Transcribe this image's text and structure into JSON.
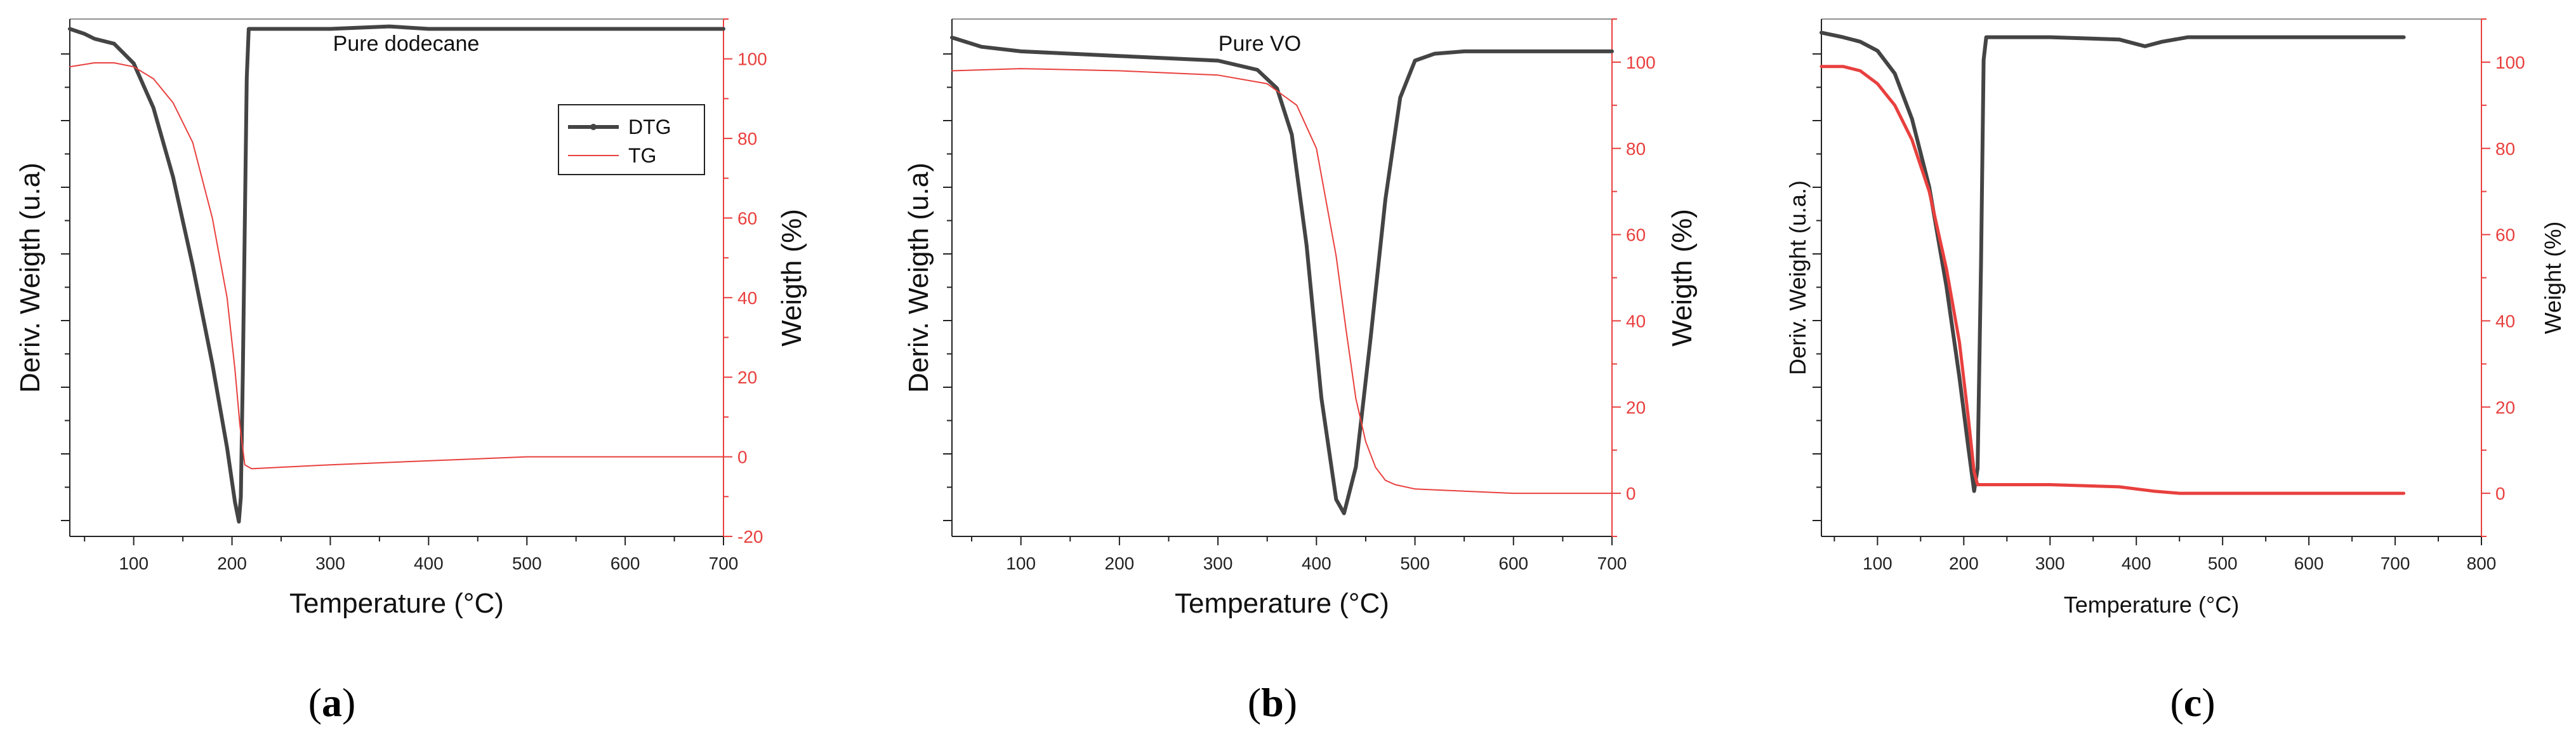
{
  "colors": {
    "dtg": "#444444",
    "tg": "#e8403e",
    "axis_left": "#222222",
    "axis_right": "#e8403e"
  },
  "chart_data": [
    {
      "id": "a",
      "type": "line",
      "title": "Pure dodecane",
      "caption_letter": "a",
      "xlabel": "Temperature (°C)",
      "ylabel_left": "Deriv. Weigth (u.a)",
      "ylabel_right": "Weigth (%)",
      "xlim": [
        35,
        700
      ],
      "xticks": [
        100,
        200,
        300,
        400,
        500,
        600,
        700
      ],
      "ylim_left": [
        -1.03,
        0.02
      ],
      "ylim_right": [
        -20,
        110
      ],
      "yticks_right": [
        -20,
        0,
        20,
        40,
        60,
        80,
        100
      ],
      "legend": [
        {
          "name": "DTG"
        },
        {
          "name": "TG"
        }
      ],
      "series": [
        {
          "name": "DTG",
          "axis": "left",
          "width": 6,
          "x": [
            35,
            50,
            60,
            80,
            100,
            120,
            140,
            160,
            180,
            195,
            203,
            207,
            209,
            211,
            213,
            215,
            217,
            300,
            360,
            400,
            500,
            600,
            700
          ],
          "y": [
            0.0,
            -0.01,
            -0.02,
            -0.03,
            -0.07,
            -0.16,
            -0.3,
            -0.48,
            -0.68,
            -0.85,
            -0.96,
            -1.0,
            -0.95,
            -0.7,
            -0.4,
            -0.1,
            0.0,
            0.0,
            0.005,
            0.0,
            0.0,
            0.0,
            0.0
          ]
        },
        {
          "name": "TG",
          "axis": "right",
          "width": 2,
          "x": [
            35,
            60,
            80,
            100,
            120,
            140,
            160,
            180,
            195,
            203,
            208,
            213,
            220,
            300,
            400,
            500,
            600,
            700
          ],
          "y": [
            98,
            99,
            99,
            98,
            95,
            89,
            79,
            60,
            40,
            22,
            8,
            -2,
            -3,
            -2,
            -1,
            0,
            0,
            0
          ]
        }
      ]
    },
    {
      "id": "b",
      "type": "line",
      "title": "Pure VO",
      "caption_letter": "b",
      "xlabel": "Temperature (°C)",
      "ylabel_left": "Deriv. Weigth (u.a)",
      "ylabel_right": "Weigth (%)",
      "xlim": [
        30,
        700
      ],
      "xticks": [
        100,
        200,
        300,
        400,
        500,
        600,
        700
      ],
      "ylim_left": [
        -1.05,
        0.07
      ],
      "ylim_right": [
        -10,
        110
      ],
      "yticks_right": [
        0,
        20,
        40,
        60,
        80,
        100
      ],
      "series": [
        {
          "name": "DTG",
          "axis": "left",
          "width": 6,
          "x": [
            30,
            60,
            100,
            200,
            300,
            340,
            360,
            375,
            390,
            405,
            420,
            428,
            440,
            455,
            470,
            485,
            500,
            520,
            550,
            600,
            700
          ],
          "y": [
            0.03,
            0.01,
            0.0,
            -0.01,
            -0.02,
            -0.04,
            -0.08,
            -0.18,
            -0.42,
            -0.75,
            -0.97,
            -1.0,
            -0.9,
            -0.62,
            -0.32,
            -0.1,
            -0.02,
            -0.005,
            0.0,
            0.0,
            0.0
          ]
        },
        {
          "name": "TG",
          "axis": "right",
          "width": 2,
          "x": [
            30,
            100,
            200,
            300,
            350,
            380,
            400,
            420,
            430,
            440,
            450,
            460,
            470,
            480,
            500,
            550,
            600,
            700
          ],
          "y": [
            98,
            98.5,
            98,
            97,
            95,
            90,
            80,
            55,
            38,
            22,
            12,
            6,
            3,
            2,
            1,
            0.5,
            0,
            0
          ]
        }
      ]
    },
    {
      "id": "c",
      "type": "line",
      "title": "",
      "caption_letter": "c",
      "xlabel": "Temperature (°C)",
      "ylabel_left": "Deriv. Weight (u.a.)",
      "ylabel_right": "Weight (%)",
      "xlim": [
        35,
        800
      ],
      "xticks": [
        100,
        200,
        300,
        400,
        500,
        600,
        700,
        800
      ],
      "ylim_left": [
        -1.1,
        0.04
      ],
      "ylim_right": [
        -10,
        110
      ],
      "yticks_right": [
        0,
        20,
        40,
        60,
        80,
        100
      ],
      "series": [
        {
          "name": "DTG",
          "axis": "left",
          "width": 6,
          "x": [
            35,
            60,
            80,
            100,
            120,
            140,
            160,
            180,
            195,
            205,
            212,
            216,
            220,
            223,
            226,
            300,
            380,
            410,
            430,
            460,
            500,
            600,
            710
          ],
          "y": [
            0.01,
            0.0,
            -0.01,
            -0.03,
            -0.08,
            -0.18,
            -0.33,
            -0.55,
            -0.75,
            -0.9,
            -1.0,
            -0.95,
            -0.5,
            -0.05,
            0.0,
            0.0,
            -0.005,
            -0.02,
            -0.01,
            0.0,
            0.0,
            0.0,
            0.0
          ]
        },
        {
          "name": "TG",
          "axis": "right",
          "width": 5,
          "x": [
            35,
            60,
            80,
            100,
            120,
            140,
            160,
            180,
            195,
            205,
            212,
            216,
            222,
            300,
            380,
            420,
            450,
            500,
            600,
            710
          ],
          "y": [
            99,
            99,
            98,
            95,
            90,
            82,
            70,
            52,
            35,
            18,
            5,
            2,
            2,
            2,
            1.5,
            0.5,
            0,
            0,
            0,
            0
          ]
        }
      ]
    }
  ]
}
